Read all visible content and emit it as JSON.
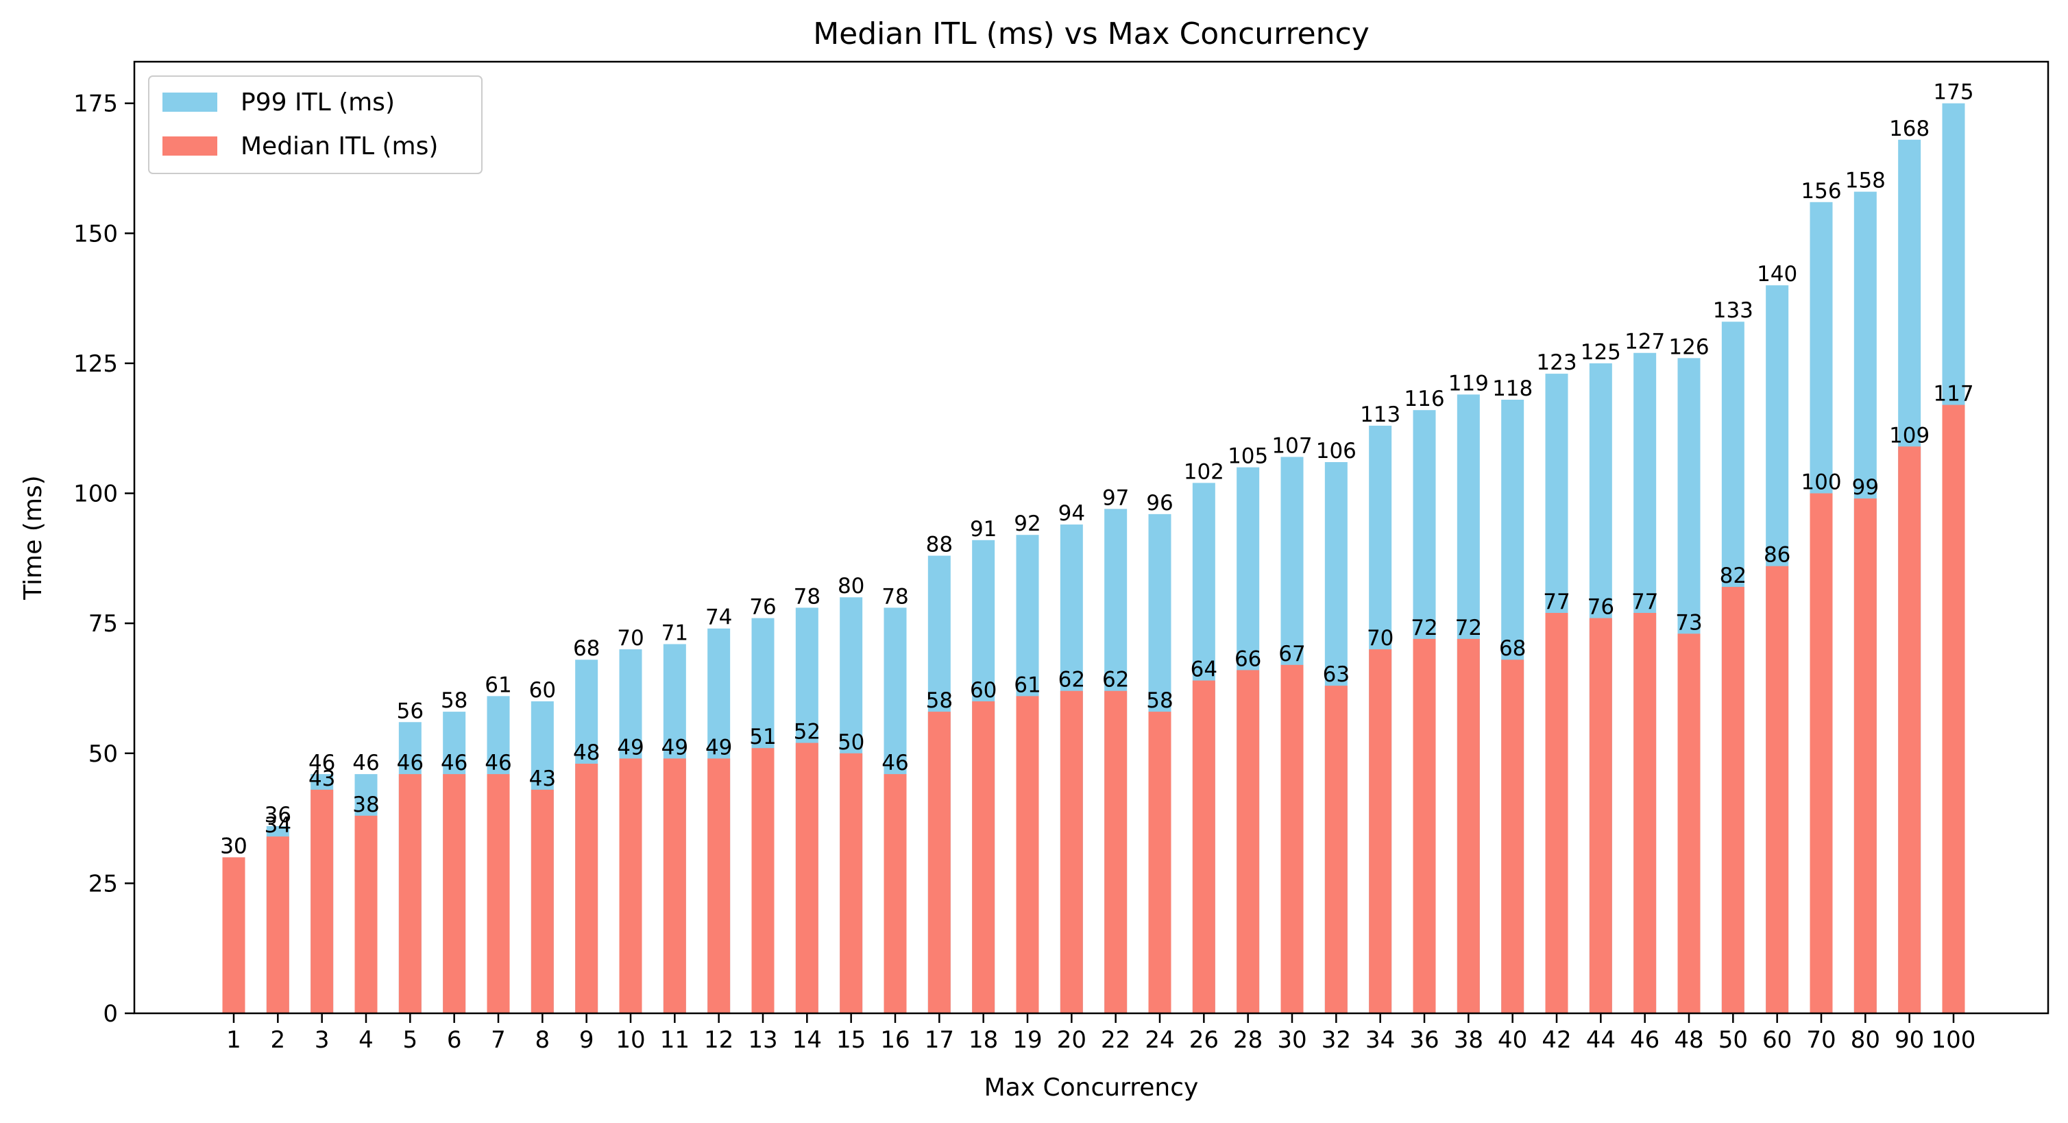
{
  "chart_data": {
    "type": "bar",
    "stacked": false,
    "overlaid": true,
    "title": "Median ITL (ms) vs Max Concurrency",
    "xlabel": "Max Concurrency",
    "ylabel": "Time (ms)",
    "ylim": [
      0,
      183
    ],
    "yticks": [
      0,
      25,
      50,
      75,
      100,
      125,
      150,
      175
    ],
    "grid": false,
    "legend_position": "top-left",
    "categories": [
      "1",
      "2",
      "3",
      "4",
      "5",
      "6",
      "7",
      "8",
      "9",
      "10",
      "11",
      "12",
      "13",
      "14",
      "15",
      "16",
      "17",
      "18",
      "19",
      "20",
      "22",
      "24",
      "26",
      "28",
      "30",
      "32",
      "34",
      "36",
      "38",
      "40",
      "42",
      "44",
      "46",
      "48",
      "50",
      "60",
      "70",
      "80",
      "90",
      "100"
    ],
    "series": [
      {
        "name": "P99 ITL (ms)",
        "color": "#87ceeb",
        "values": [
          30,
          36,
          46,
          46,
          56,
          58,
          61,
          60,
          68,
          70,
          71,
          74,
          76,
          78,
          80,
          78,
          88,
          91,
          92,
          94,
          97,
          96,
          102,
          105,
          107,
          106,
          113,
          116,
          119,
          118,
          123,
          125,
          127,
          126,
          133,
          140,
          156,
          158,
          168,
          175
        ]
      },
      {
        "name": "Median ITL (ms)",
        "color": "#fa8072",
        "values": [
          30,
          34,
          43,
          38,
          46,
          46,
          46,
          43,
          48,
          49,
          49,
          49,
          51,
          52,
          50,
          46,
          58,
          60,
          61,
          62,
          62,
          58,
          64,
          66,
          67,
          63,
          70,
          72,
          72,
          68,
          77,
          76,
          77,
          73,
          82,
          86,
          100,
          99,
          109,
          117
        ]
      }
    ]
  }
}
